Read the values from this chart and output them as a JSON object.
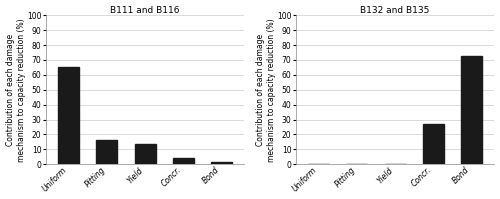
{
  "left": {
    "title": "B111 and B116",
    "categories": [
      "Uniform",
      "Pitting",
      "Yield",
      "Concr.",
      "Bond"
    ],
    "values": [
      65,
      16,
      13.5,
      4,
      1.5
    ],
    "ylim": [
      0,
      100
    ],
    "yticks": [
      0,
      10,
      20,
      30,
      40,
      50,
      60,
      70,
      80,
      90,
      100
    ]
  },
  "right": {
    "title": "B132 and B135",
    "categories": [
      "Uniform",
      "Pitting",
      "Yield",
      "Concr.",
      "Bond"
    ],
    "values": [
      0,
      0,
      0,
      27,
      73
    ],
    "ylim": [
      0,
      100
    ],
    "yticks": [
      0,
      10,
      20,
      30,
      40,
      50,
      60,
      70,
      80,
      90,
      100
    ]
  },
  "ylabel": "Contribution of each damage\nmechanism to capacity reduction (%)",
  "bar_color": "#1a1a1a",
  "bar_width": 0.55,
  "background_color": "#ffffff",
  "title_fontsize": 6.5,
  "tick_fontsize": 5.5,
  "ylabel_fontsize": 5.5,
  "grid_color": "#cccccc",
  "grid_linewidth": 0.5
}
